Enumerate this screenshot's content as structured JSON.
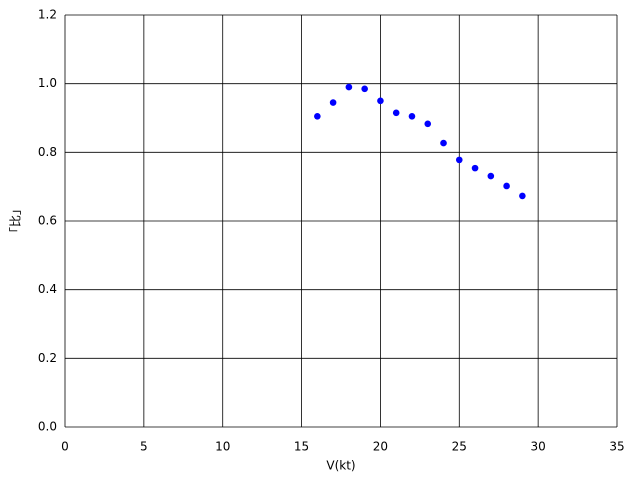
{
  "chart_data": {
    "type": "scatter",
    "x_label": "V(kt)",
    "y_label": "「比」",
    "x": [
      16,
      17,
      18,
      19,
      20,
      21,
      22,
      23,
      24,
      25,
      26,
      27,
      28,
      29
    ],
    "values": [
      0.905,
      0.945,
      0.99,
      0.985,
      0.95,
      0.915,
      0.905,
      0.883,
      0.827,
      0.778,
      0.754,
      0.731,
      0.702,
      0.673
    ],
    "color": "#0000ff",
    "xlim": [
      0,
      35
    ],
    "xticks": [
      0,
      5,
      10,
      15,
      20,
      25,
      30,
      35
    ],
    "ylim": [
      0,
      1.2
    ],
    "yticks": [
      {
        "value": 0,
        "label": "0.0"
      },
      {
        "value": 0.2,
        "label": "0.2"
      },
      {
        "value": 0.4,
        "label": "0.4"
      },
      {
        "value": 0.6,
        "label": "0.6"
      },
      {
        "value": 0.8,
        "label": "0.8"
      },
      {
        "value": 1,
        "label": "1.0"
      },
      {
        "value": 1.2,
        "label": "1.2"
      }
    ],
    "grid": true
  }
}
